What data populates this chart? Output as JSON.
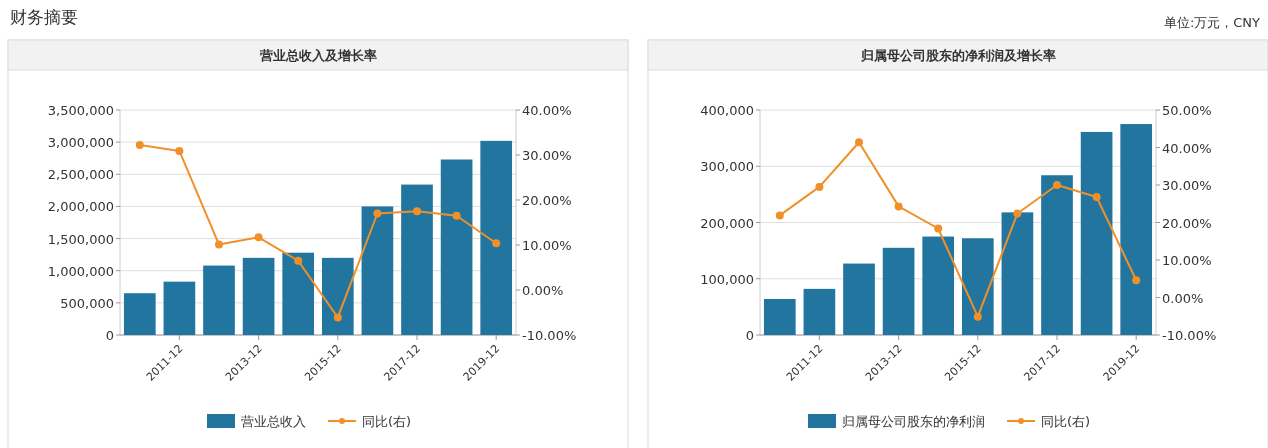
{
  "chart_data": [
    {
      "type": "bar",
      "title": "营业总收入及增长率",
      "annotations": [
        "财务摘要",
        "单位:万元，CNY"
      ],
      "categories": [
        null,
        "2011-12",
        null,
        "2013-12",
        null,
        "2015-12",
        null,
        "2017-12",
        null,
        "2019-12"
      ],
      "series": [
        {
          "name": "营业总收入",
          "color": "#21759f",
          "values": [
            650000,
            830000,
            1080000,
            1200000,
            1280000,
            1200000,
            2000000,
            2340000,
            2730000,
            3020000
          ]
        },
        {
          "type": "line",
          "name": "同比(右)",
          "color": "#f0902a",
          "axis": "y2",
          "marker": "circle",
          "values": [
            32.2,
            30.9,
            10.1,
            11.7,
            6.5,
            -6.1,
            17.0,
            17.5,
            16.5,
            10.4
          ]
        }
      ],
      "ylim": [
        0,
        3500000
      ],
      "yticks": [
        0,
        {
          "value": 500000,
          "label": "500,000"
        },
        {
          "value": 1000000,
          "label": "1,000,000"
        },
        {
          "value": 1500000,
          "label": "1,500,000"
        },
        {
          "value": 2000000,
          "label": "2,000,000"
        },
        {
          "value": 2500000,
          "label": "2,500,000"
        },
        {
          "value": 3000000,
          "label": "3,000,000"
        },
        {
          "value": 3500000,
          "label": "3,500,000"
        }
      ],
      "y2lim": [
        -10,
        40
      ],
      "y2ticks": [
        {
          "value": -10,
          "label": "-10.00%"
        },
        {
          "value": 0,
          "label": "0.00%"
        },
        {
          "value": 10,
          "label": "10.00%"
        },
        {
          "value": 20,
          "label": "20.00%"
        },
        {
          "value": 30,
          "label": "30.00%"
        },
        {
          "value": 40,
          "label": "40.00%"
        }
      ],
      "grid": "y",
      "legend": "bottom"
    },
    {
      "type": "bar",
      "title": "归属母公司股东的净利润及增长率",
      "categories": [
        null,
        "2011-12",
        null,
        "2013-12",
        null,
        "2015-12",
        null,
        "2017-12",
        null,
        "2019-12"
      ],
      "series": [
        {
          "name": "归属母公司股东的净利润",
          "color": "#21759f",
          "values": [
            64000,
            82000,
            127000,
            155000,
            175000,
            172000,
            218000,
            284000,
            361000,
            375000
          ]
        },
        {
          "type": "line",
          "name": "同比(右)",
          "color": "#f0902a",
          "axis": "y2",
          "marker": "circle",
          "values": [
            21.9,
            29.5,
            41.4,
            24.3,
            18.4,
            -5.1,
            22.4,
            30.0,
            26.8,
            4.6
          ]
        }
      ],
      "ylim": [
        0,
        400000
      ],
      "yticks": [
        0,
        {
          "value": 100000,
          "label": "100,000"
        },
        {
          "value": 200000,
          "label": "200,000"
        },
        {
          "value": 300000,
          "label": "300,000"
        },
        {
          "value": 400000,
          "label": "400,000"
        }
      ],
      "y2lim": [
        -10,
        50
      ],
      "y2ticks": [
        {
          "value": -10,
          "label": "-10.00%"
        },
        {
          "value": 0,
          "label": "0.00%"
        },
        {
          "value": 10,
          "label": "10.00%"
        },
        {
          "value": 20,
          "label": "20.00%"
        },
        {
          "value": 30,
          "label": "30.00%"
        },
        {
          "value": 40,
          "label": "40.00%"
        },
        {
          "value": 50,
          "label": "50.00%"
        }
      ],
      "grid": "y",
      "legend": "bottom"
    }
  ]
}
